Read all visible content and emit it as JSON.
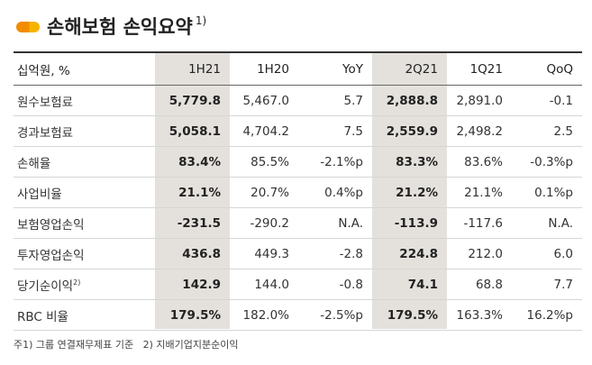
{
  "title": "손해보험 손익요약",
  "title_note": "1)",
  "table": {
    "header": [
      "십억원, %",
      "1H21",
      "1H20",
      "YoY",
      "2Q21",
      "1Q21",
      "QoQ"
    ],
    "rows": [
      {
        "label": "원수보험료",
        "values": [
          "5,779.8",
          "5,467.0",
          "5.7",
          "2,888.8",
          "2,891.0",
          "-0.1"
        ]
      },
      {
        "label": "경과보험료",
        "values": [
          "5,058.1",
          "4,704.2",
          "7.5",
          "2,559.9",
          "2,498.2",
          "2.5"
        ]
      },
      {
        "label": "손해율",
        "values": [
          "83.4%",
          "85.5%",
          "-2.1%p",
          "83.3%",
          "83.6%",
          "-0.3%p"
        ]
      },
      {
        "label": "사업비율",
        "values": [
          "21.1%",
          "20.7%",
          "0.4%p",
          "21.2%",
          "21.1%",
          "0.1%p"
        ]
      },
      {
        "label": "보험영업손익",
        "values": [
          "-231.5",
          "-290.2",
          "N.A.",
          "-113.9",
          "-117.6",
          "N.A."
        ]
      },
      {
        "label": "투자영업손익",
        "values": [
          "436.8",
          "449.3",
          "-2.8",
          "224.8",
          "212.0",
          "6.0"
        ]
      },
      {
        "label": "당기순이익",
        "label_note": "2)",
        "values": [
          "142.9",
          "144.0",
          "-0.8",
          "74.1",
          "68.8",
          "7.7"
        ]
      },
      {
        "label": "RBC 비율",
        "values": [
          "179.5%",
          "182.0%",
          "-2.5%p",
          "179.5%",
          "163.3%",
          "16.2%p"
        ]
      }
    ]
  },
  "footnote": "주1) 그룹 연결재무제표 기준   2) 지배기업지분순이익"
}
